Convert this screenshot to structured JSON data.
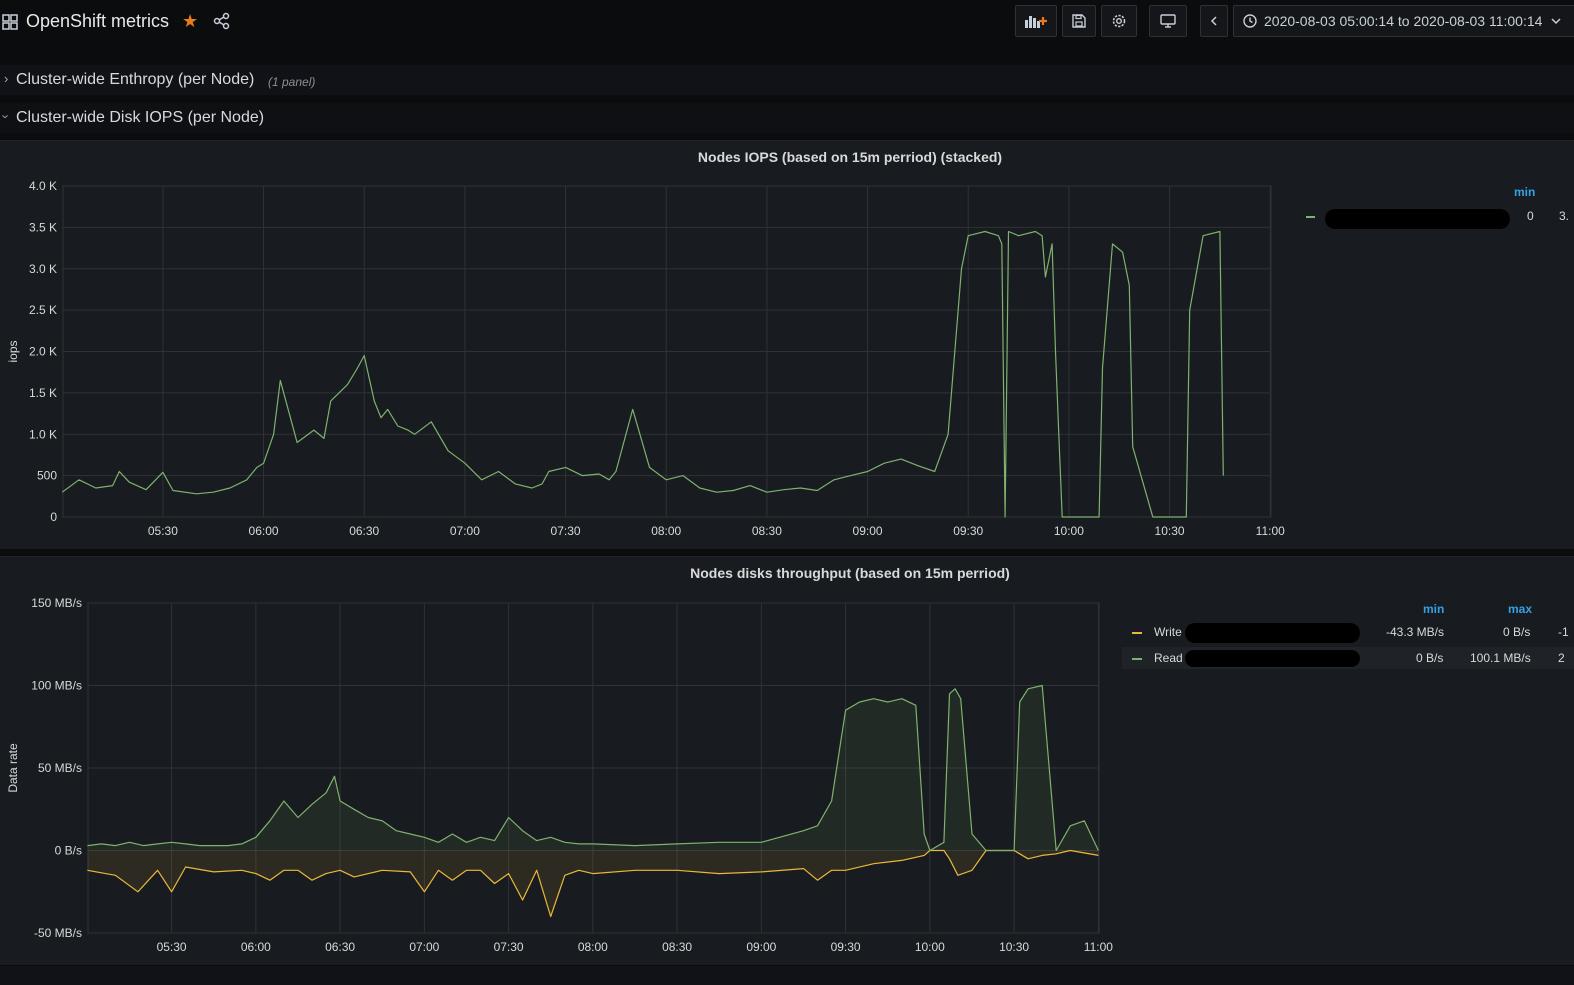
{
  "header": {
    "title": "OpenShift metrics",
    "time_range": "2020-08-03 05:00:14 to 2020-08-03 11:00:14"
  },
  "rows": [
    {
      "title": "Cluster-wide Enthropy (per Node)",
      "count": "(1 panel)",
      "collapsed": true
    },
    {
      "title": "Cluster-wide Disk IOPS (per Node)",
      "collapsed": false
    }
  ],
  "icons": {
    "apps": "apps-grid-icon",
    "star": "star-icon",
    "share": "share-icon",
    "add_panel": "add-panel-icon",
    "save": "save-icon",
    "settings": "gear-icon",
    "tv": "tv-monitor-icon",
    "back": "chevron-left-icon",
    "clock": "clock-icon",
    "dropdown": "chevron-down-icon"
  },
  "colors": {
    "write": "#eab839",
    "read": "#7eb26d",
    "legend_header": "#33a2e5",
    "star": "#eb7b18"
  },
  "panels": {
    "iops": {
      "title": "Nodes IOPS (based on 15m perriod) (stacked)",
      "ylabel": "iops",
      "legend_header_min": "min",
      "legend_row": {
        "min": "0",
        "max_partial": "3."
      }
    },
    "throughput": {
      "title": "Nodes disks throughput (based on 15m perriod)",
      "ylabel": "Data rate",
      "legend_header_min": "min",
      "legend_header_max": "max",
      "legend_rows": [
        {
          "name": "Write s",
          "min": "-43.3 MB/s",
          "max": "0 B/s",
          "extra": "-1"
        },
        {
          "name": "Read s",
          "min": "0 B/s",
          "max": "100.1 MB/s",
          "extra": "2"
        }
      ]
    }
  },
  "chart_data": [
    {
      "type": "line",
      "title": "Nodes IOPS (based on 15m perriod) (stacked)",
      "ylabel": "iops",
      "ylim": [
        0,
        4000
      ],
      "yticks": [
        "0",
        "500",
        "1.0 K",
        "1.5 K",
        "2.0 K",
        "2.5 K",
        "3.0 K",
        "3.5 K",
        "4.0 K"
      ],
      "xticks": [
        "05:30",
        "06:00",
        "06:30",
        "07:00",
        "07:30",
        "08:00",
        "08:30",
        "09:00",
        "09:30",
        "10:00",
        "10:30",
        "11:00"
      ],
      "grid": true,
      "legend_placement": "right",
      "series": [
        {
          "x": [
            "05:00",
            "05:05",
            "05:10",
            "05:15",
            "05:17",
            "05:20",
            "05:25",
            "05:30",
            "05:33",
            "05:40",
            "05:45",
            "05:50",
            "05:55",
            "05:58",
            "06:00",
            "06:03",
            "06:05",
            "06:08",
            "06:10",
            "06:15",
            "06:18",
            "06:20",
            "06:25",
            "06:28",
            "06:30",
            "06:33",
            "06:35",
            "06:37",
            "06:40",
            "06:43",
            "06:45",
            "06:50",
            "06:55",
            "07:00",
            "07:05",
            "07:10",
            "07:15",
            "07:20",
            "07:23",
            "07:25",
            "07:30",
            "07:35",
            "07:40",
            "07:43",
            "07:45",
            "07:50",
            "07:55",
            "08:00",
            "08:05",
            "08:10",
            "08:15",
            "08:20",
            "08:25",
            "08:30",
            "08:35",
            "08:40",
            "08:45",
            "08:50",
            "08:55",
            "09:00",
            "09:05",
            "09:10",
            "09:15",
            "09:20",
            "09:24",
            "09:26",
            "09:28",
            "09:30",
            "09:35",
            "09:39",
            "09:40",
            "09:41",
            "09:42",
            "09:45",
            "09:50",
            "09:52",
            "09:53",
            "09:55",
            "09:56",
            "09:57",
            "09:58",
            "10:00",
            "10:05",
            "10:09",
            "10:10",
            "10:13",
            "10:16",
            "10:18",
            "10:19",
            "10:25",
            "10:35",
            "10:36",
            "10:40",
            "10:45",
            "10:46"
          ],
          "values": [
            300,
            450,
            350,
            380,
            550,
            420,
            330,
            540,
            320,
            280,
            300,
            350,
            450,
            600,
            650,
            1000,
            1650,
            1200,
            900,
            1050,
            950,
            1400,
            1600,
            1800,
            1950,
            1400,
            1200,
            1300,
            1100,
            1050,
            1000,
            1150,
            800,
            650,
            450,
            550,
            400,
            350,
            400,
            550,
            600,
            500,
            520,
            450,
            550,
            1300,
            600,
            450,
            500,
            350,
            300,
            320,
            380,
            300,
            330,
            350,
            320,
            450,
            500,
            550,
            650,
            700,
            620,
            550,
            1000,
            2000,
            3000,
            3400,
            3450,
            3400,
            3300,
            0,
            3450,
            3400,
            3450,
            3400,
            2900,
            3300,
            2000,
            1000,
            0,
            0,
            0,
            0,
            1800,
            3300,
            3200,
            2800,
            850,
            0,
            0,
            2500,
            3400,
            3450,
            500
          ]
        }
      ]
    },
    {
      "type": "area",
      "title": "Nodes disks throughput (based on 15m perriod)",
      "ylabel": "Data rate",
      "ylim": [
        -50,
        150
      ],
      "yticks": [
        "-50 MB/s",
        "0 B/s",
        "50 MB/s",
        "100 MB/s",
        "150 MB/s"
      ],
      "xticks": [
        "05:30",
        "06:00",
        "06:30",
        "07:00",
        "07:30",
        "08:00",
        "08:30",
        "09:00",
        "09:30",
        "10:00",
        "10:30",
        "11:00"
      ],
      "grid": true,
      "legend_placement": "right",
      "series": [
        {
          "name": "Write s",
          "x": [
            "05:00",
            "05:10",
            "05:18",
            "05:25",
            "05:30",
            "05:35",
            "05:45",
            "05:55",
            "06:00",
            "06:05",
            "06:10",
            "06:15",
            "06:20",
            "06:25",
            "06:30",
            "06:35",
            "06:45",
            "06:55",
            "07:00",
            "07:05",
            "07:10",
            "07:15",
            "07:20",
            "07:25",
            "07:30",
            "07:35",
            "07:40",
            "07:45",
            "07:50",
            "07:55",
            "08:00",
            "08:15",
            "08:30",
            "08:45",
            "09:00",
            "09:15",
            "09:20",
            "09:25",
            "09:30",
            "09:40",
            "09:50",
            "09:58",
            "10:00",
            "10:05",
            "10:07",
            "10:10",
            "10:15",
            "10:20",
            "10:25",
            "10:30",
            "10:35",
            "10:40",
            "10:45",
            "10:50",
            "11:00"
          ],
          "values": [
            -12,
            -15,
            -25,
            -12,
            -25,
            -10,
            -13,
            -12,
            -14,
            -18,
            -12,
            -12,
            -18,
            -14,
            -12,
            -16,
            -12,
            -13,
            -25,
            -12,
            -18,
            -12,
            -12,
            -20,
            -14,
            -30,
            -12,
            -40,
            -15,
            -12,
            -14,
            -12,
            -12,
            -14,
            -13,
            -11,
            -18,
            -12,
            -12,
            -8,
            -6,
            -3,
            0,
            0,
            -5,
            -15,
            -12,
            0,
            0,
            0,
            -5,
            -3,
            -2,
            0,
            -3
          ]
        },
        {
          "name": "Read s",
          "x": [
            "05:00",
            "05:05",
            "05:10",
            "05:15",
            "05:20",
            "05:25",
            "05:30",
            "05:35",
            "05:40",
            "05:45",
            "05:50",
            "05:55",
            "06:00",
            "06:05",
            "06:10",
            "06:15",
            "06:20",
            "06:25",
            "06:28",
            "06:30",
            "06:35",
            "06:40",
            "06:45",
            "06:50",
            "06:55",
            "07:00",
            "07:05",
            "07:10",
            "07:15",
            "07:20",
            "07:25",
            "07:30",
            "07:35",
            "07:40",
            "07:45",
            "07:50",
            "07:55",
            "08:00",
            "08:15",
            "08:30",
            "08:45",
            "09:00",
            "09:15",
            "09:20",
            "09:25",
            "09:30",
            "09:35",
            "09:40",
            "09:45",
            "09:50",
            "09:55",
            "09:58",
            "10:00",
            "10:05",
            "10:07",
            "10:09",
            "10:11",
            "10:15",
            "10:20",
            "10:25",
            "10:30",
            "10:32",
            "10:35",
            "10:40",
            "10:45",
            "10:50",
            "10:55",
            "11:00"
          ],
          "values": [
            3,
            4,
            3,
            5,
            3,
            4,
            5,
            4,
            3,
            3,
            3,
            4,
            8,
            18,
            30,
            20,
            28,
            35,
            45,
            30,
            25,
            20,
            18,
            12,
            10,
            8,
            5,
            10,
            5,
            8,
            6,
            20,
            12,
            6,
            8,
            5,
            4,
            4,
            3,
            4,
            5,
            5,
            12,
            15,
            30,
            85,
            90,
            92,
            90,
            92,
            88,
            10,
            0,
            5,
            95,
            98,
            92,
            10,
            0,
            0,
            0,
            90,
            98,
            100,
            0,
            15,
            18,
            0
          ]
        }
      ]
    }
  ]
}
